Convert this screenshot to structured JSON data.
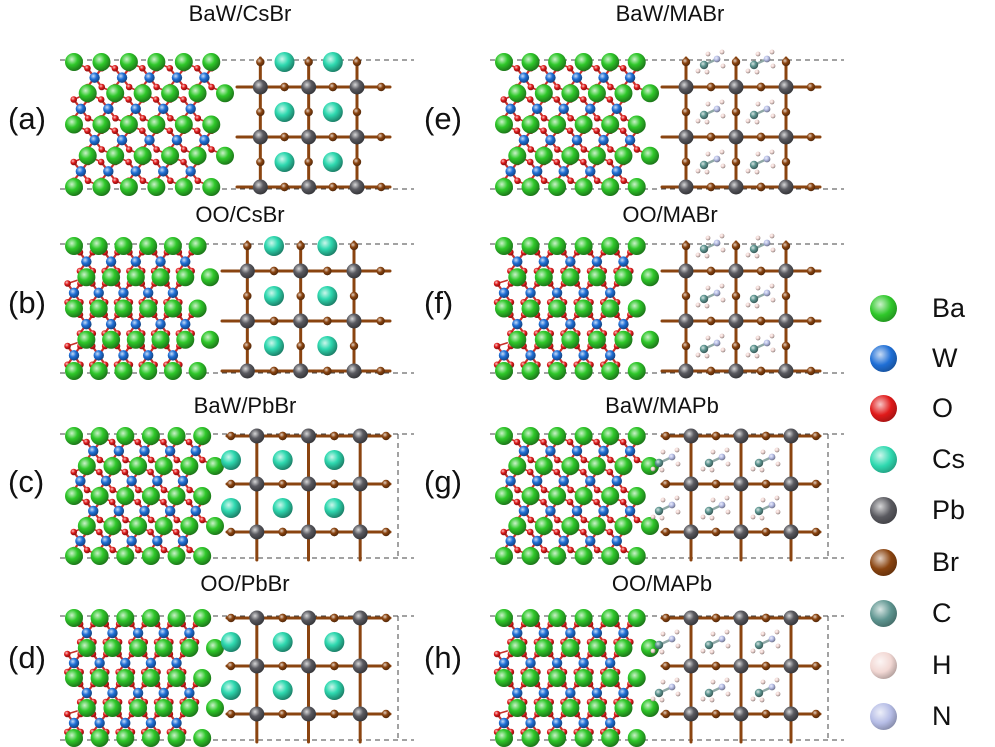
{
  "panels": [
    {
      "label": "(a)",
      "title": "BaW/CsBr",
      "left": "BaW",
      "right": "CsBr"
    },
    {
      "label": "(b)",
      "title": "OO/CsBr",
      "left": "OO",
      "right": "CsBr"
    },
    {
      "label": "(c)",
      "title": "BaW/PbBr",
      "left": "BaW",
      "right": "PbBr"
    },
    {
      "label": "(d)",
      "title": "OO/PbBr",
      "left": "OO",
      "right": "PbBr"
    },
    {
      "label": "(e)",
      "title": "BaW/MABr",
      "left": "BaW",
      "right": "MABr"
    },
    {
      "label": "(f)",
      "title": "OO/MABr",
      "left": "OO",
      "right": "MABr"
    },
    {
      "label": "(g)",
      "title": "BaW/MAPb",
      "left": "BaW",
      "right": "MAPb"
    },
    {
      "label": "(h)",
      "title": "OO/MAPb",
      "left": "OO",
      "right": "MAPb"
    }
  ],
  "legend": [
    {
      "element": "Ba",
      "color": "#2fc82a"
    },
    {
      "element": "W",
      "color": "#1f6fd6"
    },
    {
      "element": "O",
      "color": "#e01a1a"
    },
    {
      "element": "Cs",
      "color": "#2fd9b0"
    },
    {
      "element": "Pb",
      "color": "#5a5a60"
    },
    {
      "element": "Br",
      "color": "#8a4410"
    },
    {
      "element": "C",
      "color": "#5e9590"
    },
    {
      "element": "H",
      "color": "#f2d8d4"
    },
    {
      "element": "N",
      "color": "#b6bde6"
    }
  ]
}
